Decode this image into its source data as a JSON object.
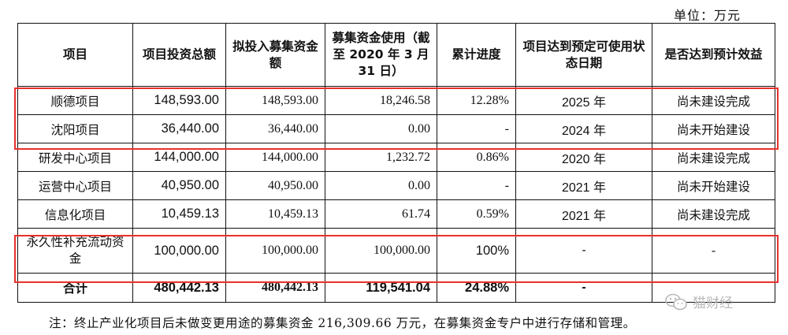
{
  "unit_label": "单位：万元",
  "headers": {
    "project": "项目",
    "total_investment": "项目投资总额",
    "planned_raise": "拟投入募集资金额",
    "funds_used": "募集资金使用（截至 2020 年 3 月 31 日）",
    "progress": "累计进度",
    "ready_date": "项目达到预定可使用状态日期",
    "benefit": "是否达到预计效益"
  },
  "rows": [
    {
      "project": "顺德项目",
      "total": "148,593.00",
      "raise": "148,593.00",
      "used": "18,246.58",
      "progress": "12.28%",
      "date": "2025 年",
      "status": "尚未建设完成"
    },
    {
      "project": "沈阳项目",
      "total": "36,440.00",
      "raise": "36,440.00",
      "used": "0.00",
      "progress": "-",
      "date": "2024 年",
      "status": "尚未开始建设"
    },
    {
      "project": "研发中心项目",
      "total": "144,000.00",
      "raise": "144,000.00",
      "used": "1,232.72",
      "progress": "0.86%",
      "date": "2020 年",
      "status": "尚未建设完成"
    },
    {
      "project": "运营中心项目",
      "total": "40,950.00",
      "raise": "40,950.00",
      "used": "0.00",
      "progress": "-",
      "date": "2021 年",
      "status": "尚未开始建设"
    },
    {
      "project": "信息化项目",
      "total": "10,459.13",
      "raise": "10,459.13",
      "used": "61.74",
      "progress": "0.59%",
      "date": "2021 年",
      "status": "尚未建设完成"
    },
    {
      "project": "永久性补充流动资金",
      "total": "100,000.00",
      "raise": "100,000.00",
      "used": "100,000.00",
      "progress": "100%",
      "date": "-",
      "status": "-"
    }
  ],
  "total_row": {
    "project": "合计",
    "total": "480,442.13",
    "raise": "480,442.13",
    "used": "119,541.04",
    "progress": "24.88%",
    "date": "-",
    "status": ""
  },
  "note": "注：终止产业化项目后未做变更用途的募集资金 216,309.66 万元，在募集资金专户中进行存储和管理。",
  "watermark": "猫财经",
  "highlight_color": "#e8312c"
}
